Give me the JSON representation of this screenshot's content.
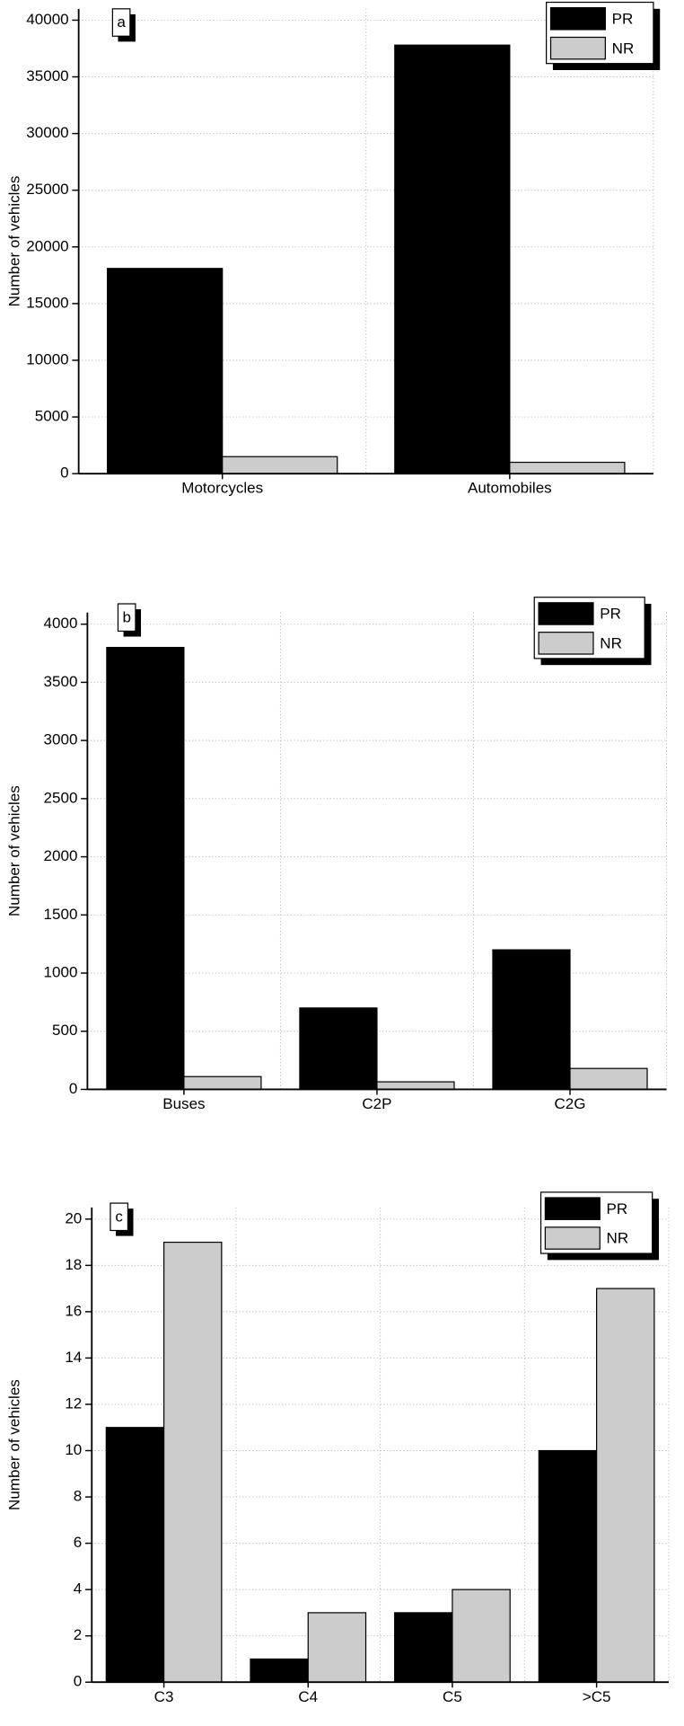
{
  "chart_data": [
    {
      "type": "bar",
      "label": "a",
      "ylabel": "Number of vehicles",
      "categories": [
        "Motorcycles",
        "Automobiles"
      ],
      "series": [
        {
          "name": "PR",
          "color": "#000000",
          "values": [
            18100,
            37800
          ]
        },
        {
          "name": "NR",
          "color": "#cccccc",
          "values": [
            1500,
            1000
          ]
        }
      ],
      "ylim": [
        0,
        41000
      ],
      "yticks": [
        0,
        5000,
        10000,
        15000,
        20000,
        25000,
        30000,
        35000,
        40000
      ],
      "grid": true,
      "legend": "upper right"
    },
    {
      "type": "bar",
      "label": "b",
      "ylabel": "Number of vehicles",
      "categories": [
        "Buses",
        "C2P",
        "C2G"
      ],
      "series": [
        {
          "name": "PR",
          "color": "#000000",
          "values": [
            3800,
            700,
            1200
          ]
        },
        {
          "name": "NR",
          "color": "#cccccc",
          "values": [
            110,
            65,
            180
          ]
        }
      ],
      "ylim": [
        0,
        4100
      ],
      "yticks": [
        0,
        500,
        1000,
        1500,
        2000,
        2500,
        3000,
        3500,
        4000
      ],
      "grid": true,
      "legend": "upper right"
    },
    {
      "type": "bar",
      "label": "c",
      "ylabel": "Number of vehicles",
      "categories": [
        "C3",
        "C4",
        "C5",
        ">C5"
      ],
      "series": [
        {
          "name": "PR",
          "color": "#000000",
          "values": [
            11,
            1,
            3,
            10
          ]
        },
        {
          "name": "NR",
          "color": "#cccccc",
          "values": [
            19,
            3,
            4,
            17
          ]
        }
      ],
      "ylim": [
        0,
        20.5
      ],
      "yticks": [
        0,
        2,
        4,
        6,
        8,
        10,
        12,
        14,
        16,
        18,
        20
      ],
      "grid": true,
      "legend": "upper right"
    }
  ]
}
